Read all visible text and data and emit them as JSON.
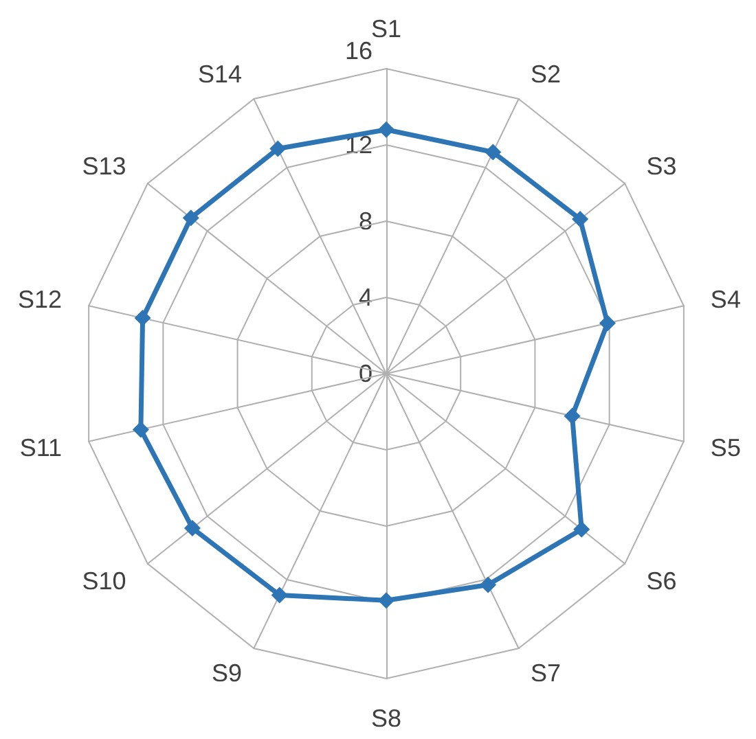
{
  "chart_data": {
    "type": "radar",
    "categories": [
      "S1",
      "S2",
      "S3",
      "S4",
      "S5",
      "S6",
      "S7",
      "S8",
      "S9",
      "S10",
      "S11",
      "S12",
      "S13",
      "S14"
    ],
    "series": [
      {
        "color": "#2e75b6",
        "values": [
          12.8,
          12.9,
          13.0,
          11.9,
          10.0,
          13.1,
          12.3,
          11.9,
          12.9,
          13.0,
          13.2,
          13.1,
          13.1,
          13.1
        ]
      }
    ],
    "ylim": [
      0,
      16
    ],
    "yticks": [
      0,
      4,
      8,
      12,
      16
    ],
    "grid": true,
    "marker": "diamond",
    "line_style": "solid"
  }
}
